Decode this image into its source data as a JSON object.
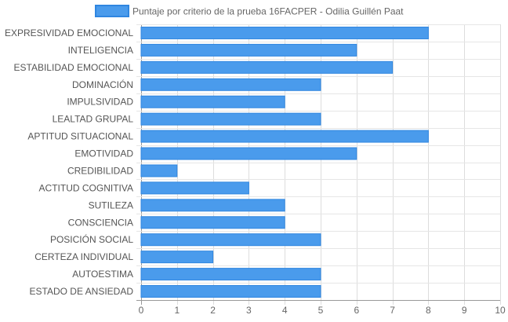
{
  "chart_data": {
    "type": "bar",
    "orientation": "horizontal",
    "categories": [
      "EXPRESIVIDAD EMOCIONAL",
      "INTELIGENCIA",
      "ESTABILIDAD EMOCIONAL",
      "DOMINACIÓN",
      "IMPULSIVIDAD",
      "LEALTAD GRUPAL",
      "APTITUD SITUACIONAL",
      "EMOTIVIDAD",
      "CREDIBILIDAD",
      "ACTITUD COGNITIVA",
      "SUTILEZA",
      "CONSCIENCIA",
      "POSICIÓN SOCIAL",
      "CERTEZA INDIVIDUAL",
      "AUTOESTIMA",
      "ESTADO DE ANSIEDAD"
    ],
    "series": [
      {
        "name": "Puntaje por criterio de la prueba 16FACPER - Odilia Guillén Paat",
        "values": [
          8,
          6,
          7,
          5,
          4,
          5,
          8,
          6,
          1,
          3,
          4,
          4,
          5,
          2,
          5,
          5
        ],
        "color": "#4a9bec",
        "border_color": "#2f86e0"
      }
    ],
    "xlim": [
      0,
      10
    ],
    "x_ticks": [
      0,
      1,
      2,
      3,
      4,
      5,
      6,
      7,
      8,
      9,
      10
    ],
    "grid": true,
    "legend_position": "top"
  }
}
